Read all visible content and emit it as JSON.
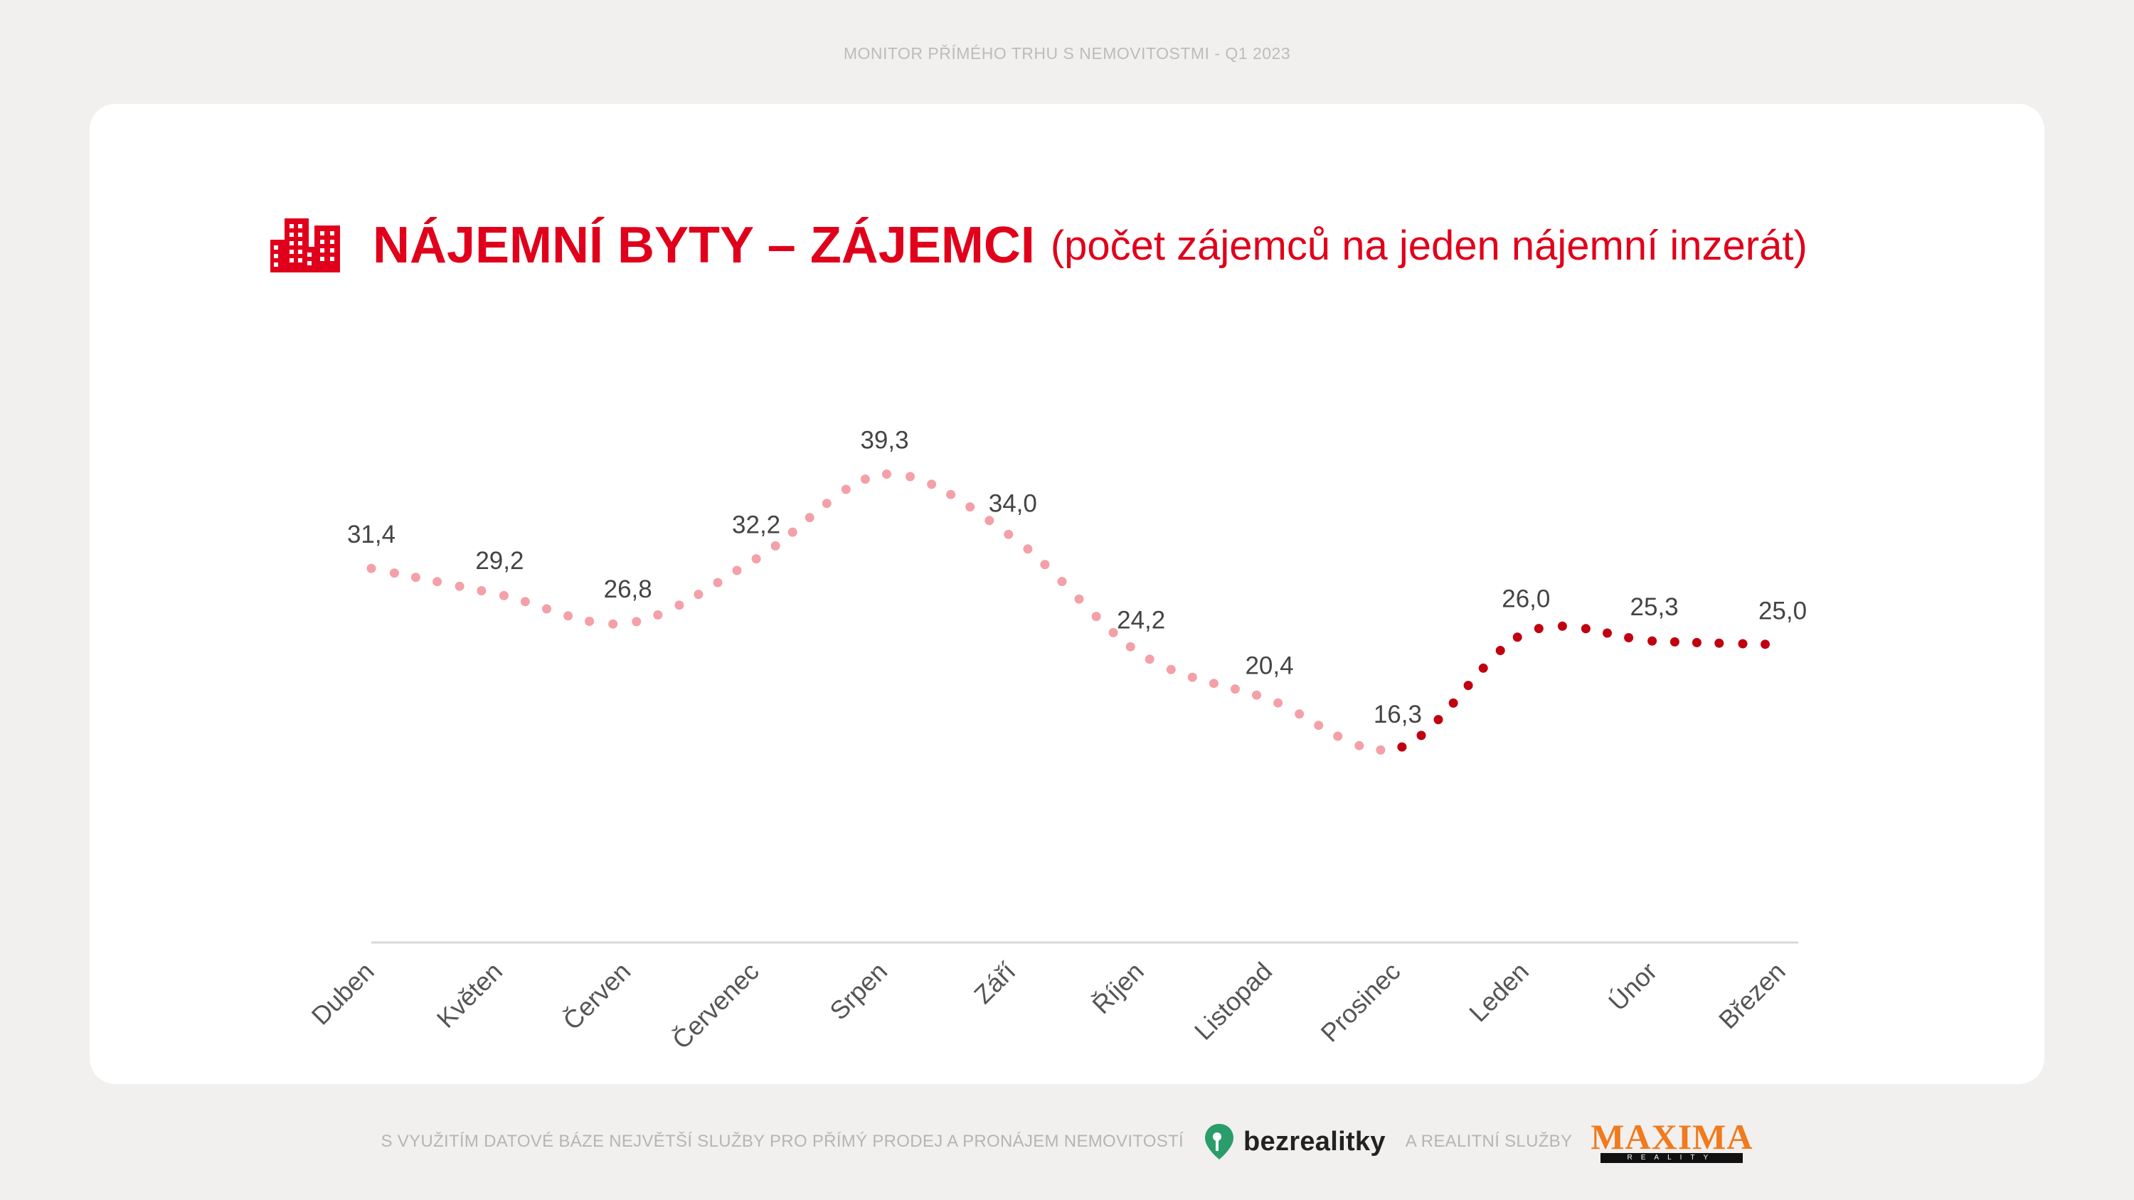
{
  "header": {
    "text": "MONITOR PŘÍMÉHO TRHU S NEMOVITOSTMI - Q1 2023"
  },
  "title": {
    "icon": "buildings-icon",
    "main": "NÁJEMNÍ BYTY – ZÁJEMCI",
    "sub": "(počet zájemců na jeden nájemní inzerát)"
  },
  "colors": {
    "accent": "#e0001b",
    "light_series": "#f4a0a8",
    "dark_series": "#c00010"
  },
  "chart_data": {
    "type": "line",
    "line_style": "dotted, smoothed",
    "categories": [
      "Duben",
      "Květen",
      "Červen",
      "Červenec",
      "Srpen",
      "Září",
      "Říjen",
      "Listopad",
      "Prosinec",
      "Leden",
      "Únor",
      "Březen"
    ],
    "values": [
      31.4,
      29.2,
      26.8,
      32.2,
      39.3,
      34.0,
      24.2,
      20.4,
      16.3,
      26.0,
      25.3,
      25.0
    ],
    "labels": [
      "31,4",
      "29,2",
      "26,8",
      "32,2",
      "39,3",
      "34,0",
      "24,2",
      "20,4",
      "16,3",
      "26,0",
      "25,3",
      "25,0"
    ],
    "highlight_from_index": 8,
    "ylim": [
      0,
      45
    ],
    "grid": false,
    "legend": "none"
  },
  "footer": {
    "text_left": "S VYUŽITÍM DATOVÉ BÁZE NEJVĚTŠÍ SLUŽBY PRO PŘÍMÝ PRODEJ A PRONÁJEM NEMOVITOSTÍ",
    "brand1": "bezrealitky",
    "text_mid": "A REALITNÍ SLUŽBY",
    "brand2": "MAXIMA",
    "brand2_sub": "REALITY"
  }
}
